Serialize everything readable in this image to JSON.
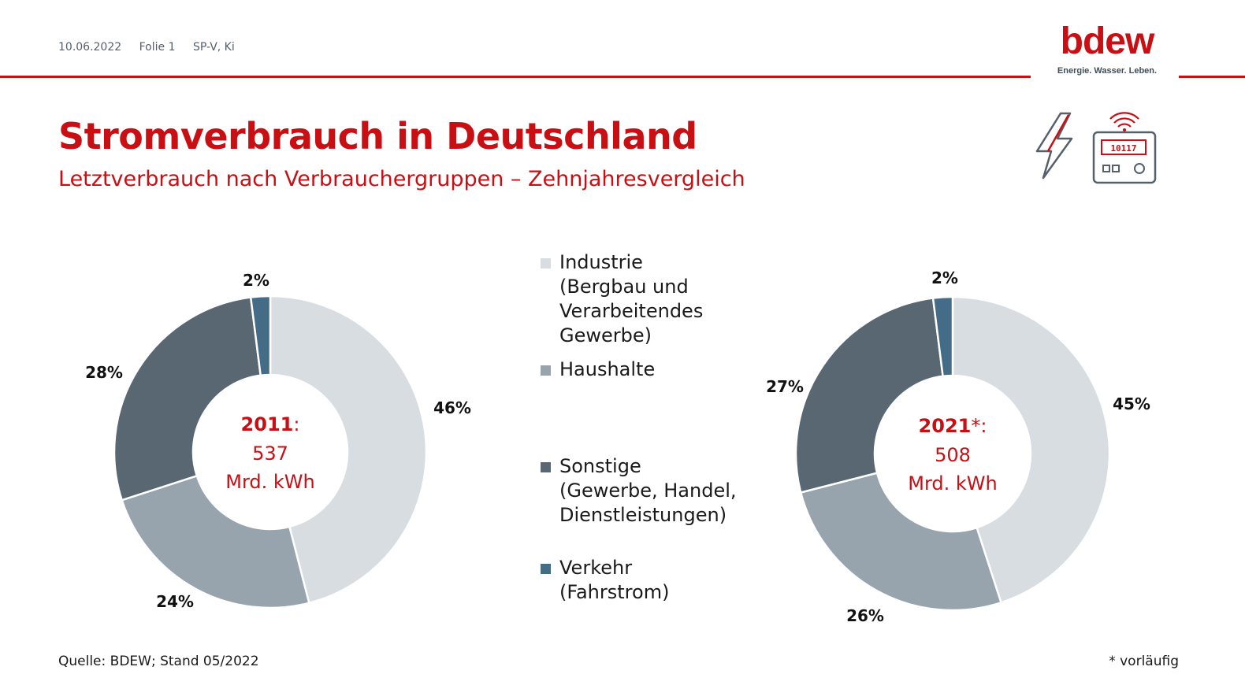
{
  "header": {
    "date": "10.06.2022",
    "slide": "Folie 1",
    "author": "SP-V, Ki"
  },
  "logo": {
    "word": "bdew",
    "tagline": "Energie. Wasser. Leben."
  },
  "icons": [
    "lightning-icon",
    "electricity-meter-icon"
  ],
  "meter_display": "10117",
  "title": "Stromverbrauch in Deutschland",
  "subtitle": "Letztverbrauch nach Verbrauchergruppen – Zehnjahresvergleich",
  "colors": {
    "accent": "#c80f14",
    "industrie": "#d8dde2",
    "haushalte": "#97a3ad",
    "sonstige": "#596773",
    "verkehr": "#456c87"
  },
  "legend": [
    {
      "label": "Industrie\n(Bergbau und\nVerarbeitendes\nGewerbe)",
      "color": "#d8dde2"
    },
    {
      "label": "Haushalte",
      "color": "#97a3ad"
    },
    {
      "label": "Sonstige\n(Gewerbe, Handel,\nDienstleistungen)",
      "color": "#596773"
    },
    {
      "label": "Verkehr\n(Fahrstrom)",
      "color": "#456c87"
    }
  ],
  "chart_data": [
    {
      "type": "pie",
      "variant": "donut",
      "center_year": "2011",
      "center_suffix": ":",
      "center_value": "537",
      "center_unit": "Mrd. kWh",
      "categories": [
        "Industrie (Bergbau und Verarbeitendes Gewerbe)",
        "Haushalte",
        "Sonstige (Gewerbe, Handel, Dienstleistungen)",
        "Verkehr (Fahrstrom)"
      ],
      "values": [
        46,
        24,
        28,
        2
      ],
      "labels": [
        "46%",
        "24%",
        "28%",
        "2%"
      ]
    },
    {
      "type": "pie",
      "variant": "donut",
      "center_year": "2021",
      "center_suffix": "*:",
      "center_value": "508",
      "center_unit": "Mrd. kWh",
      "categories": [
        "Industrie (Bergbau und Verarbeitendes Gewerbe)",
        "Haushalte",
        "Sonstige (Gewerbe, Handel, Dienstleistungen)",
        "Verkehr (Fahrstrom)"
      ],
      "values": [
        45,
        26,
        27,
        2
      ],
      "labels": [
        "45%",
        "26%",
        "27%",
        "2%"
      ]
    }
  ],
  "footer": {
    "source": "Quelle: BDEW; Stand 05/2022",
    "note": "* vorläufig"
  }
}
